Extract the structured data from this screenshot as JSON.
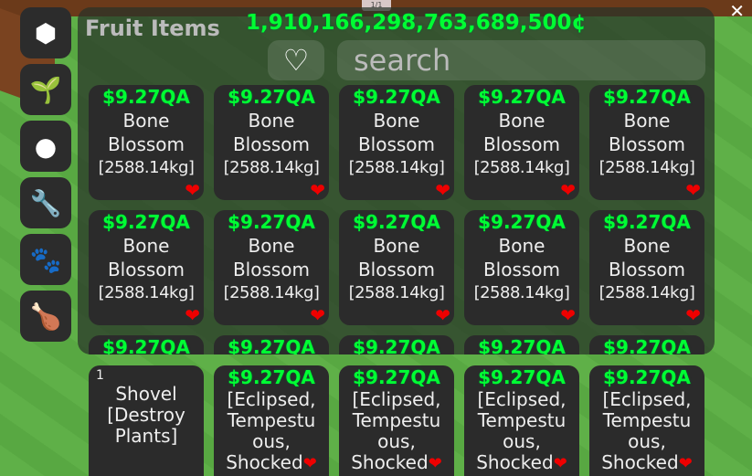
{
  "pager": "1/1",
  "sidebar": [
    {
      "icon": "box-icon",
      "glyph": "⬢"
    },
    {
      "icon": "sprout-icon",
      "glyph": "🌱"
    },
    {
      "icon": "tomato-icon",
      "glyph": "●"
    },
    {
      "icon": "wrench-icon",
      "glyph": "🔧"
    },
    {
      "icon": "paw-icon",
      "glyph": "🐾"
    },
    {
      "icon": "meat-icon",
      "glyph": "🍗"
    }
  ],
  "panel": {
    "title": "Fruit Items",
    "money": "1,910,166,298,763,689,500¢",
    "search_placeholder": "search",
    "favorite_glyph": "♡"
  },
  "items": [
    {
      "price": "$9.27QA",
      "name1": "Bone",
      "name2": "Blossom",
      "weight": "[2588.14kg]"
    }
  ],
  "hotbar": [
    {
      "slot": "1",
      "lines": [
        "Shovel",
        "[Destroy",
        "Plants]"
      ]
    },
    {
      "price": "$9.27QA",
      "lines": [
        "[Eclipsed,",
        "Tempestu",
        "ous,",
        "Shocked"
      ]
    }
  ],
  "colors": {
    "money": "#00ff33",
    "heart": "#e00000",
    "card": "#2b2b2b"
  }
}
